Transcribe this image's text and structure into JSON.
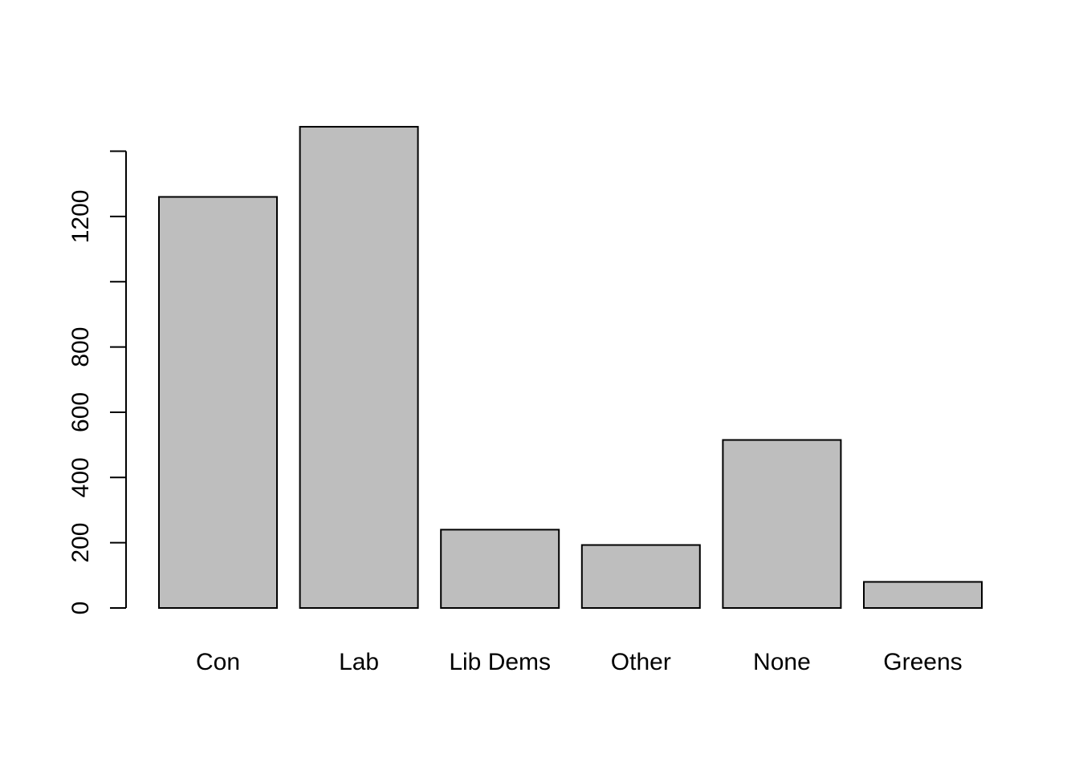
{
  "chart_data": {
    "type": "bar",
    "categories": [
      "Con",
      "Lab",
      "Lib Dems",
      "Other",
      "None",
      "Greens"
    ],
    "values": [
      1260,
      1475,
      240,
      193,
      515,
      80
    ],
    "ylim": [
      0,
      1475
    ],
    "yticks": [
      0,
      200,
      400,
      600,
      800,
      1000,
      1200,
      1400
    ],
    "ytick_labels": [
      "0",
      "200",
      "400",
      "600",
      "800",
      "",
      "1200",
      ""
    ],
    "title": "",
    "xlabel": "",
    "ylabel": "",
    "grid": false,
    "colors": {
      "bar_fill": "#bebebe",
      "bar_stroke": "#000000"
    }
  }
}
